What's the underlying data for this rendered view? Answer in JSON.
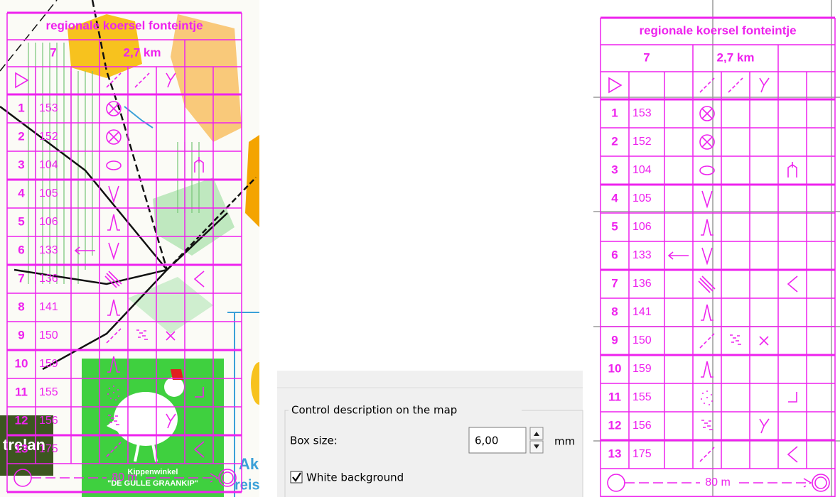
{
  "description": {
    "title": "regionale koersel fonteintje",
    "course": "7",
    "length": "2,7 km",
    "controls": [
      {
        "number": "1",
        "code": "153"
      },
      {
        "number": "2",
        "code": "152"
      },
      {
        "number": "3",
        "code": "104"
      },
      {
        "number": "4",
        "code": "105"
      },
      {
        "number": "5",
        "code": "106"
      },
      {
        "number": "6",
        "code": "133"
      },
      {
        "number": "7",
        "code": "136"
      },
      {
        "number": "8",
        "code": "141"
      },
      {
        "number": "9",
        "code": "150"
      },
      {
        "number": "10",
        "code": "159"
      },
      {
        "number": "11",
        "code": "155"
      },
      {
        "number": "12",
        "code": "156"
      },
      {
        "number": "13",
        "code": "175"
      }
    ],
    "finish": "80 m"
  },
  "map": {
    "sign_title": "Kippenwinkel",
    "sign_subtitle": "\"DE GULLE GRAANKIP\"",
    "dark_label": "trelan",
    "blue_label_1": "Ak",
    "blue_label_2": "reis"
  },
  "dialog": {
    "group": "Control description on the map",
    "box_size_label": "Box size:",
    "box_size": "6,00",
    "unit": "mm",
    "white_background": "White background"
  }
}
